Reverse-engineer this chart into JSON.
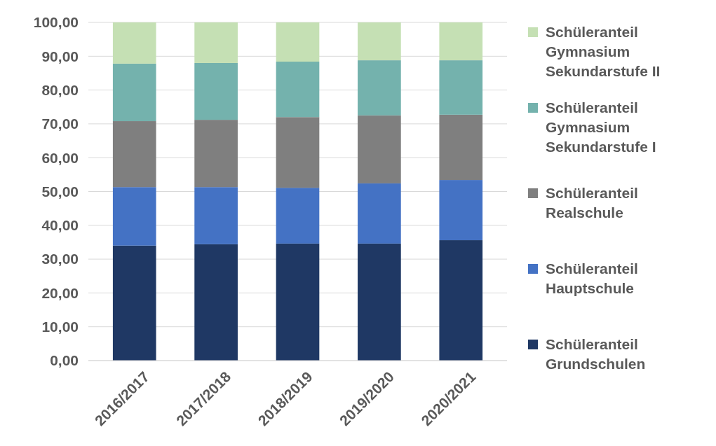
{
  "chart_data": {
    "type": "bar",
    "stacked": true,
    "categories": [
      "2016/2017",
      "2017/2018",
      "2018/2019",
      "2019/2020",
      "2020/2021"
    ],
    "series": [
      {
        "name": "Schüleranteil Grundschulen",
        "color": "#1f3864",
        "values": [
          34.0,
          34.4,
          34.6,
          34.6,
          35.6
        ]
      },
      {
        "name": "Schüleranteil Hauptschule",
        "color": "#4472c4",
        "values": [
          17.3,
          16.9,
          16.5,
          17.8,
          17.8
        ]
      },
      {
        "name": "Schüleranteil Realschule",
        "color": "#7f7f7f",
        "values": [
          19.5,
          19.9,
          20.9,
          20.1,
          19.3
        ]
      },
      {
        "name": "Schüleranteil Gymnasium Sekundarstufe I",
        "color": "#74b2ad",
        "values": [
          17.0,
          16.8,
          16.4,
          16.3,
          16.1
        ]
      },
      {
        "name": "Schüleranteil Gymnasium Sekundarstufe II",
        "color": "#c5e0b4",
        "values": [
          12.2,
          12.0,
          11.6,
          11.2,
          11.2
        ]
      }
    ],
    "ylim": [
      0,
      100
    ],
    "yticks": [
      {
        "value": 0,
        "label": "0,00"
      },
      {
        "value": 10,
        "label": "10,00"
      },
      {
        "value": 20,
        "label": "20,00"
      },
      {
        "value": 30,
        "label": "30,00"
      },
      {
        "value": 40,
        "label": "40,00"
      },
      {
        "value": 50,
        "label": "50,00"
      },
      {
        "value": 60,
        "label": "60,00"
      },
      {
        "value": 70,
        "label": "70,00"
      },
      {
        "value": 80,
        "label": "80,00"
      },
      {
        "value": 90,
        "label": "90,00"
      },
      {
        "value": 100,
        "label": "100,00"
      }
    ],
    "grid": "y",
    "legend": "right"
  }
}
